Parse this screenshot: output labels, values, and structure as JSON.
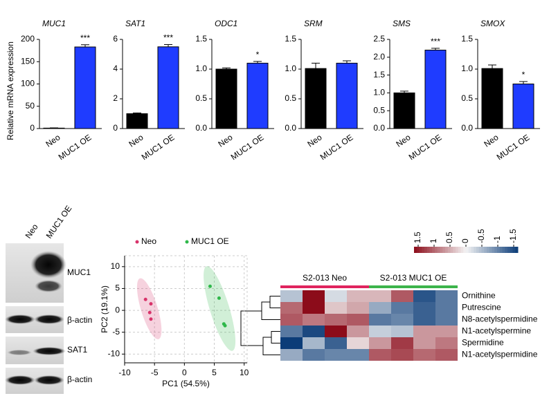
{
  "chart_data": [
    {
      "type": "bar",
      "title": "MUC1",
      "ylabel": "Relative mRNA expression",
      "categories": [
        "Neo",
        "MUC1 OE"
      ],
      "values": [
        1,
        183
      ],
      "errors": [
        0.5,
        5
      ],
      "significance": [
        null,
        "***"
      ],
      "colors": [
        "#000000",
        "#1f3cff"
      ],
      "ylim": [
        0,
        200
      ],
      "yticks": [
        0,
        50,
        100,
        150,
        200
      ]
    },
    {
      "type": "bar",
      "title": "SAT1",
      "categories": [
        "Neo",
        "MUC1 OE"
      ],
      "values": [
        1.0,
        5.5
      ],
      "errors": [
        0.05,
        0.15
      ],
      "significance": [
        null,
        "***"
      ],
      "colors": [
        "#000000",
        "#1f3cff"
      ],
      "ylim": [
        0,
        6
      ],
      "yticks": [
        0,
        2,
        4,
        6
      ]
    },
    {
      "type": "bar",
      "title": "ODC1",
      "categories": [
        "Neo",
        "MUC1 OE"
      ],
      "values": [
        1.0,
        1.1
      ],
      "errors": [
        0.02,
        0.03
      ],
      "significance": [
        null,
        "*"
      ],
      "colors": [
        "#000000",
        "#1f3cff"
      ],
      "ylim": [
        0,
        1.5
      ],
      "yticks": [
        {
          "value": 0,
          "label": "0.0"
        },
        0.5,
        {
          "value": 1,
          "label": "1.0"
        },
        1.5
      ]
    },
    {
      "type": "bar",
      "title": "SRM",
      "categories": [
        "Neo",
        "MUC1 OE"
      ],
      "values": [
        1.01,
        1.1
      ],
      "errors": [
        0.09,
        0.04
      ],
      "significance": [
        null,
        null
      ],
      "colors": [
        "#000000",
        "#1f3cff"
      ],
      "ylim": [
        0,
        1.5
      ],
      "yticks": [
        {
          "value": 0,
          "label": "0.0"
        },
        0.5,
        {
          "value": 1,
          "label": "1.0"
        },
        1.5
      ]
    },
    {
      "type": "bar",
      "title": "SMS",
      "categories": [
        "Neo",
        "MUC1 OE"
      ],
      "values": [
        1.0,
        2.2
      ],
      "errors": [
        0.05,
        0.05
      ],
      "significance": [
        null,
        "***"
      ],
      "colors": [
        "#000000",
        "#1f3cff"
      ],
      "ylim": [
        0,
        2.5
      ],
      "yticks": [
        {
          "value": 0,
          "label": "0.0"
        },
        0.5,
        {
          "value": 1,
          "label": "1.0"
        },
        1.5,
        {
          "value": 2,
          "label": "2.0"
        },
        2.5
      ]
    },
    {
      "type": "bar",
      "title": "SMOX",
      "categories": [
        "Neo",
        "MUC1 OE"
      ],
      "values": [
        1.01,
        0.75
      ],
      "errors": [
        0.06,
        0.04
      ],
      "significance": [
        null,
        "*"
      ],
      "colors": [
        "#000000",
        "#1f3cff"
      ],
      "ylim": [
        0,
        1.5
      ],
      "yticks": [
        {
          "value": 0,
          "label": "0.0"
        },
        0.5,
        {
          "value": 1,
          "label": "1.0"
        },
        1.5
      ]
    },
    {
      "type": "scatter",
      "xlabel": "PC1 (54.5%)",
      "ylabel": "PC2 (19.1%)",
      "grid": true,
      "series": [
        {
          "name": "Neo",
          "color": "#d8336a",
          "x": [
            -6.5,
            -5.6,
            -5.8,
            -5.6
          ],
          "y": [
            2.5,
            1.5,
            -0.5,
            -2
          ]
        },
        {
          "name": "MUC1 OE",
          "color": "#2fb84a",
          "x": [
            4.3,
            5.8,
            6.6,
            6.8
          ],
          "y": [
            5.5,
            2.8,
            -3.1,
            -3.5
          ]
        }
      ],
      "xlim": [
        -10,
        10.5
      ],
      "xticks": [
        -10,
        -5,
        0,
        5,
        10
      ],
      "ylim": [
        -12,
        12.5
      ],
      "yticks": [
        10,
        5,
        0,
        -5,
        -10
      ]
    },
    {
      "type": "heatmap",
      "groups": [
        {
          "name": "S2-013 Neo",
          "color": "#e0245e"
        },
        {
          "name": "S2-013 MUC1 OE",
          "color": "#3cb44b"
        }
      ],
      "rows": [
        "Ornithine",
        "Putrescine",
        "N8-acetylspermidine",
        "N1-acetylspermine",
        "Spermidine",
        "N1-acetylspermidine"
      ],
      "values": [
        [
          -0.4,
          1.5,
          -0.2,
          0.4,
          0.4,
          1.0,
          -1.3,
          -1.0
        ],
        [
          0.9,
          1.5,
          0.3,
          0.5,
          -0.6,
          -1.0,
          -1.2,
          -1.0
        ],
        [
          1.0,
          0.8,
          0.9,
          1.0,
          -1.0,
          -0.9,
          -1.2,
          -1.0
        ],
        [
          -1.0,
          -1.4,
          1.5,
          0.6,
          -0.3,
          -0.4,
          0.6,
          0.6
        ],
        [
          -1.5,
          -0.5,
          -1.2,
          0.2,
          0.6,
          1.2,
          0.6,
          0.8
        ],
        [
          -0.6,
          -1.0,
          -0.9,
          -0.9,
          1.0,
          1.1,
          0.9,
          1.0
        ]
      ],
      "clim": [
        -1.5,
        1.5
      ],
      "cticks": [
        1.5,
        1,
        0.5,
        0,
        -0.5,
        -1,
        -1.5
      ],
      "colormap": [
        "#0b3c78",
        "#f4f4f4",
        "#8c0c1a"
      ]
    }
  ],
  "blot": {
    "columns": [
      "Neo",
      "MUC1 OE"
    ],
    "rows": [
      "MUC1",
      "β-actin",
      "SAT1",
      "β-actin"
    ]
  }
}
